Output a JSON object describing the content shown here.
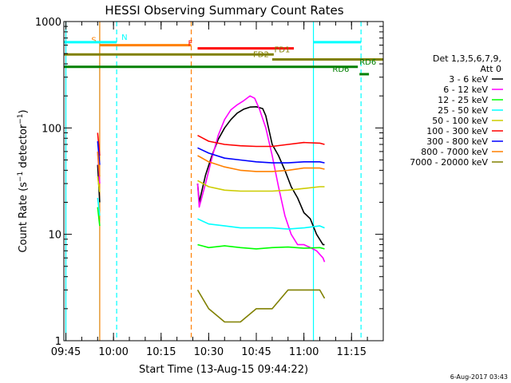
{
  "chart_data": {
    "type": "line",
    "title": "HESSI Observing Summary Count Rates",
    "xlabel": "Start Time (13-Aug-15 09:44:22)",
    "ylabel": "Count Rate (s⁻¹ detector⁻¹)",
    "ylabel_main": "Count Rate (s",
    "ylabel_sup1": "−1",
    "ylabel_mid": " detector",
    "ylabel_sup2": "−1",
    "ylabel_end": ")",
    "y_scale": "log",
    "ylim": [
      1,
      1000
    ],
    "xlim": [
      "09:44:22",
      "11:25:00"
    ],
    "y_ticks": [
      {
        "value": 1,
        "label": "1"
      },
      {
        "value": 10,
        "label": "10"
      },
      {
        "value": 100,
        "label": "100"
      },
      {
        "value": 1000,
        "label": "1000"
      }
    ],
    "x_ticks": [
      "09:45",
      "10:00",
      "10:15",
      "10:30",
      "10:45",
      "11:00",
      "11:15"
    ],
    "legend": {
      "placement": "right",
      "header": [
        "Det 1,3,5,6,7,9,",
        "Att 0"
      ],
      "entries": [
        {
          "label": "3 - 6 keV",
          "color": "#000000"
        },
        {
          "label": "6 - 12 keV",
          "color": "#ff00ff"
        },
        {
          "label": "12 - 25 keV",
          "color": "#00ff00"
        },
        {
          "label": "25 - 50 keV",
          "color": "#00ffff"
        },
        {
          "label": "50 - 100 keV",
          "color": "#cccc00"
        },
        {
          "label": "100 - 300 keV",
          "color": "#ff0000"
        },
        {
          "label": "300 - 800 keV",
          "color": "#0000ff"
        },
        {
          "label": "800 - 7000 keV",
          "color": "#ff8000"
        },
        {
          "label": "7000 - 20000 keV",
          "color": "#808000"
        }
      ]
    },
    "vertical_lines": [
      {
        "time": "09:45:00",
        "color": "#00ffff",
        "style": "solid"
      },
      {
        "time": "09:55:40",
        "color": "#00ffff",
        "style": "solid"
      },
      {
        "time": "09:55:40",
        "color": "#ff8000",
        "style": "solid"
      },
      {
        "time": "10:01:00",
        "color": "#00ffff",
        "style": "dashed"
      },
      {
        "time": "10:24:30",
        "color": "#ff8000",
        "style": "dashed"
      },
      {
        "time": "11:03:00",
        "color": "#00ffff",
        "style": "solid"
      },
      {
        "time": "11:18:00",
        "color": "#00ffff",
        "style": "dashed"
      }
    ],
    "flag_bars": [
      {
        "label": "S",
        "color": "#ff8000",
        "start": "09:55:40",
        "end": "10:24:30",
        "y": 600,
        "label_time": "09:53:00"
      },
      {
        "label": "N",
        "color": "#00ffff",
        "start": "09:44:22",
        "end": "10:01:00",
        "y": 640,
        "label_time": "10:02:30"
      },
      {
        "label": "N",
        "color": "#00ffff",
        "start": "11:03:00",
        "end": "11:18:00",
        "y": 640,
        "label_time": ""
      },
      {
        "label": "F",
        "color": "#ff0000",
        "start": "10:26:30",
        "end": "10:56:50",
        "y": 560,
        "label_time": "10:23:30"
      },
      {
        "label": "FD1",
        "color": "#808000",
        "start": "09:44:22",
        "end": "10:50:30",
        "y": 490,
        "label_time": "10:50:40"
      },
      {
        "label": "FD2",
        "color": "#808000",
        "start": "10:50:00",
        "end": "11:25:00",
        "y": 440,
        "label_time": "10:44:00"
      },
      {
        "label": "RD6",
        "color": "#008000",
        "start": "09:44:22",
        "end": "11:17:00",
        "y": 375,
        "label_time": "11:17:30"
      },
      {
        "label": "RD6",
        "color": "#008000",
        "start": "11:17:30",
        "end": "11:20:30",
        "y": 320,
        "label_time": "11:09:00"
      }
    ],
    "series": [
      {
        "name": "3 - 6 keV",
        "color": "#000000",
        "x": [
          "09:55:00",
          "09:55:40",
          "10:26:30",
          "10:27:00",
          "10:29:00",
          "10:31:00",
          "10:33:00",
          "10:35:00",
          "10:37:00",
          "10:39:00",
          "10:41:00",
          "10:43:00",
          "10:45:00",
          "10:47:00",
          "10:48:00",
          "10:50:00",
          "10:52:00",
          "10:54:00",
          "10:56:00",
          "10:58:00",
          "11:00:00",
          "11:02:00",
          "11:04:00",
          "11:06:00",
          "11:06:30"
        ],
        "y": [
          45,
          20,
          30,
          20,
          36,
          55,
          78,
          100,
          120,
          138,
          150,
          157,
          158,
          152,
          130,
          70,
          55,
          40,
          28,
          22,
          16,
          14,
          10,
          8,
          8
        ]
      },
      {
        "name": "6 - 12 keV",
        "color": "#ff00ff",
        "x": [
          "09:55:00",
          "09:55:40",
          "10:26:30",
          "10:27:00",
          "10:29:00",
          "10:31:00",
          "10:33:00",
          "10:35:00",
          "10:37:00",
          "10:39:00",
          "10:41:00",
          "10:43:00",
          "10:44:30",
          "10:46:00",
          "10:48:00",
          "10:50:00",
          "10:52:00",
          "10:54:00",
          "10:56:00",
          "10:58:00",
          "11:00:00",
          "11:02:00",
          "11:04:00",
          "11:06:00",
          "11:06:30"
        ],
        "y": [
          60,
          30,
          30,
          18,
          30,
          52,
          85,
          120,
          148,
          165,
          180,
          200,
          190,
          150,
          100,
          55,
          28,
          15,
          10,
          8,
          8,
          7.5,
          7,
          6,
          5.5
        ]
      },
      {
        "name": "12 - 25 keV",
        "color": "#00ff00",
        "x": [
          "09:55:00",
          "09:55:40",
          "10:26:30",
          "10:30:00",
          "10:35:00",
          "10:40:00",
          "10:45:00",
          "10:50:00",
          "10:55:00",
          "11:00:00",
          "11:05:00",
          "11:06:30"
        ],
        "y": [
          18,
          12,
          8,
          7.5,
          7.8,
          7.5,
          7.3,
          7.5,
          7.6,
          7.4,
          7.5,
          7.3
        ]
      },
      {
        "name": "25 - 50 keV",
        "color": "#00ffff",
        "x": [
          "09:55:00",
          "09:55:40",
          "10:26:30",
          "10:30:00",
          "10:35:00",
          "10:40:00",
          "10:45:00",
          "10:50:00",
          "10:55:00",
          "11:00:00",
          "11:05:00",
          "11:06:30"
        ],
        "y": [
          22,
          15,
          14,
          12.5,
          12,
          11.5,
          11.5,
          11.5,
          11.2,
          11.5,
          12,
          11.5
        ]
      },
      {
        "name": "50 - 100 keV",
        "color": "#cccc00",
        "x": [
          "09:55:00",
          "09:55:40",
          "10:26:30",
          "10:30:00",
          "10:35:00",
          "10:40:00",
          "10:45:00",
          "10:50:00",
          "10:55:00",
          "11:00:00",
          "11:05:00",
          "11:06:30"
        ],
        "y": [
          35,
          25,
          32,
          28,
          26,
          25.5,
          25.5,
          25.5,
          26,
          27,
          28,
          28
        ]
      },
      {
        "name": "100 - 300 keV",
        "color": "#ff0000",
        "x": [
          "09:55:00",
          "09:55:40",
          "10:26:30",
          "10:30:00",
          "10:35:00",
          "10:40:00",
          "10:45:00",
          "10:50:00",
          "10:55:00",
          "11:00:00",
          "11:05:00",
          "11:06:30"
        ],
        "y": [
          90,
          55,
          85,
          75,
          70,
          68,
          67,
          67,
          70,
          73,
          72,
          70
        ]
      },
      {
        "name": "300 - 800 keV",
        "color": "#0000ff",
        "x": [
          "09:55:00",
          "09:55:40",
          "10:26:30",
          "10:30:00",
          "10:35:00",
          "10:40:00",
          "10:45:00",
          "10:50:00",
          "10:55:00",
          "11:00:00",
          "11:05:00",
          "11:06:30"
        ],
        "y": [
          75,
          45,
          65,
          58,
          52,
          50,
          48,
          47,
          47,
          48,
          48,
          47
        ]
      },
      {
        "name": "800 - 7000 keV",
        "color": "#ff8000",
        "x": [
          "09:55:00",
          "09:55:40",
          "10:26:30",
          "10:30:00",
          "10:35:00",
          "10:40:00",
          "10:45:00",
          "10:50:00",
          "10:55:00",
          "11:00:00",
          "11:05:00",
          "11:06:30"
        ],
        "y": [
          60,
          35,
          55,
          48,
          43,
          40,
          39,
          39,
          40,
          42,
          42,
          41
        ]
      },
      {
        "name": "7000 - 20000 keV",
        "color": "#808000",
        "x": [
          "10:26:30",
          "10:30:00",
          "10:35:00",
          "10:40:00",
          "10:45:00",
          "10:50:00",
          "10:55:00",
          "11:00:00",
          "11:05:00",
          "11:06:30"
        ],
        "y": [
          3,
          2,
          1.5,
          1.5,
          2,
          2,
          3,
          3,
          3,
          2.5
        ]
      }
    ]
  },
  "timestamp": "6-Aug-2017 03:43"
}
